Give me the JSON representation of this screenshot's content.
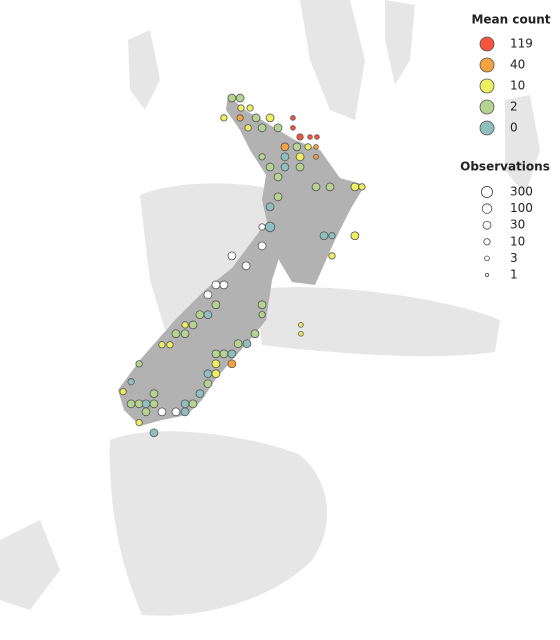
{
  "chart_data": {
    "type": "bubble_map",
    "lon": [
      172.65,
      173.02,
      173.06,
      173.47,
      172.29,
      173.02,
      173.74,
      174.37,
      173.38,
      174.01,
      174.73,
      175.4,
      175.4,
      175.72,
      176.17,
      176.48,
      175.04,
      175.58,
      176.08,
      176.44,
      176.44,
      174.01,
      175.04,
      175.72,
      174.37,
      175.04,
      175.72,
      174.73,
      176.44,
      177.07,
      178.19,
      178.51,
      174.73,
      174.37,
      174.37,
      174.01,
      176.8,
      177.16,
      178.19,
      177.16,
      174.01,
      172.65,
      173.29,
      171.93,
      172.29,
      171.57,
      171.93,
      174.01,
      171.21,
      171.57,
      174.01,
      170.9,
      170.54,
      170.13,
      170.54,
      173.69,
      173.33,
      172.93,
      172.29,
      172.65,
      171.93,
      172.65,
      171.93,
      171.57,
      171.93,
      171.57,
      171.21,
      170.54,
      170.9,
      170.13,
      170.54,
      168.11,
      168.47,
      168.78,
      169.14,
      169.14,
      168.78,
      169.5,
      168.47,
      169.14,
      168.11,
      167.75,
      169.5,
      175.76,
      175.76,
      169.86,
      168.47
    ],
    "lat": [
      -34.51,
      -34.51,
      -34.87,
      -34.87,
      -35.23,
      -35.23,
      -35.23,
      -35.23,
      -35.59,
      -35.59,
      -35.59,
      -35.23,
      -35.59,
      -35.92,
      -35.92,
      -35.92,
      -36.28,
      -36.28,
      -36.28,
      -36.28,
      -36.64,
      -36.64,
      -36.64,
      -36.64,
      -37.01,
      -37.01,
      -37.01,
      -37.37,
      -37.73,
      -37.73,
      -37.73,
      -37.73,
      -38.09,
      -38.45,
      -39.18,
      -39.18,
      -39.5,
      -39.5,
      -39.5,
      -40.23,
      -39.87,
      -40.23,
      -40.59,
      -41.28,
      -41.28,
      -41.64,
      -42.0,
      -42.0,
      -42.36,
      -42.36,
      -42.36,
      -42.73,
      -42.73,
      -43.05,
      -43.05,
      -43.05,
      -43.41,
      -43.41,
      -43.78,
      -43.78,
      -43.78,
      -44.14,
      -44.14,
      -44.5,
      -44.5,
      -44.86,
      -45.22,
      -45.59,
      -45.59,
      -45.88,
      -45.88,
      -45.59,
      -45.59,
      -45.59,
      -45.59,
      -45.22,
      -45.88,
      -45.88,
      -46.27,
      -46.64,
      -44.79,
      -45.15,
      -43.45,
      -42.73,
      -43.05,
      -43.45,
      -44.14
    ],
    "mean_count": [
      2,
      2,
      10,
      10,
      10,
      40,
      2,
      10,
      10,
      2,
      2,
      119,
      119,
      119,
      119,
      119,
      40,
      2,
      10,
      40,
      40,
      2,
      0,
      10,
      2,
      0,
      2,
      2,
      2,
      2,
      10,
      10,
      2,
      0,
      0,
      null,
      0,
      0,
      10,
      10,
      null,
      null,
      null,
      null,
      null,
      null,
      2,
      2,
      2,
      0,
      2,
      2,
      10,
      2,
      2,
      2,
      0,
      2,
      2,
      0,
      2,
      40,
      10,
      0,
      10,
      2,
      0,
      0,
      2,
      null,
      0,
      2,
      2,
      0,
      2,
      2,
      2,
      null,
      10,
      0,
      0,
      10,
      10,
      10,
      10,
      10,
      2
    ],
    "observations": [
      30,
      30,
      10,
      10,
      10,
      10,
      30,
      30,
      10,
      30,
      30,
      3,
      3,
      10,
      3,
      3,
      30,
      30,
      10,
      3,
      3,
      10,
      30,
      30,
      30,
      30,
      30,
      30,
      30,
      30,
      30,
      10,
      30,
      30,
      100,
      10,
      30,
      10,
      30,
      10,
      30,
      30,
      30,
      30,
      30,
      30,
      30,
      30,
      30,
      30,
      10,
      30,
      10,
      30,
      30,
      30,
      30,
      30,
      30,
      30,
      30,
      30,
      30,
      30,
      30,
      30,
      30,
      30,
      30,
      30,
      30,
      30,
      30,
      30,
      30,
      30,
      30,
      30,
      10,
      30,
      10,
      10,
      10,
      3,
      3,
      10,
      10
    ],
    "legend_color_title": "Mean count",
    "legend_color_values": [
      119,
      40,
      10,
      2,
      0
    ],
    "legend_colors": [
      "#f4553c",
      "#f7a13f",
      "#eef061",
      "#b5d391",
      "#8fbfbf"
    ],
    "missing_color": "#ffffff",
    "legend_size_title": "Observations",
    "legend_size_values": [
      300,
      100,
      30,
      10,
      3,
      1
    ]
  }
}
